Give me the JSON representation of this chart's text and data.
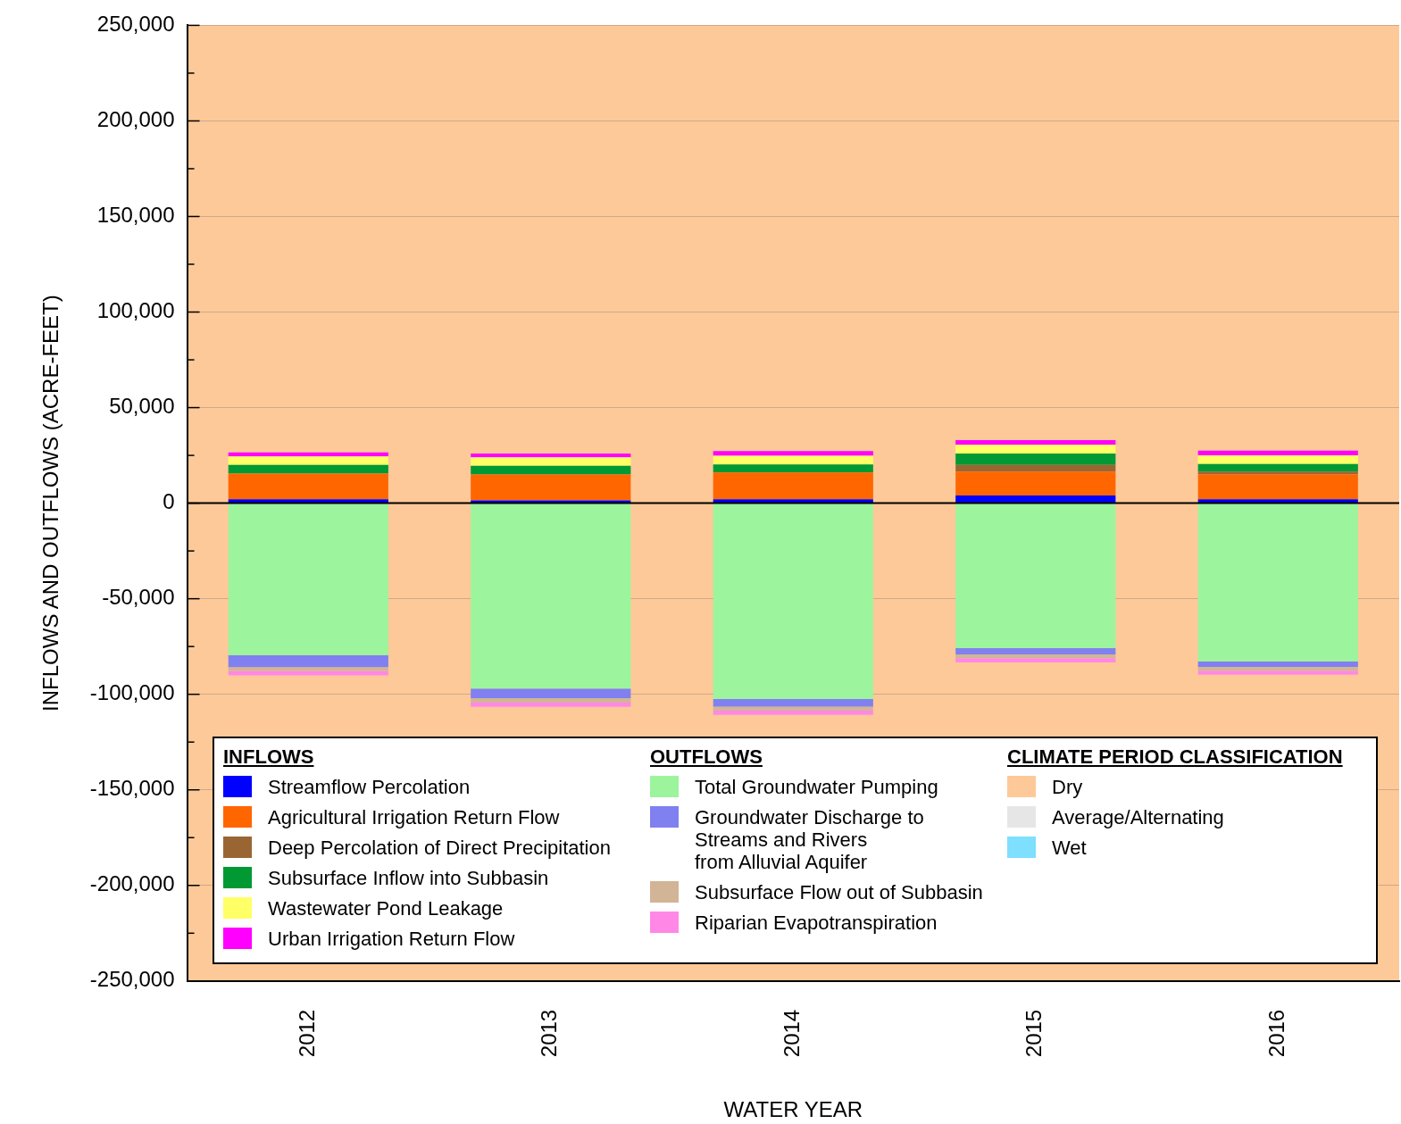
{
  "chart_data": {
    "type": "bar",
    "stacked": true,
    "xlabel": "WATER YEAR",
    "ylabel": "INFLOWS AND OUTFLOWS (ACRE-FEET)",
    "categories": [
      "2012",
      "2013",
      "2014",
      "2015",
      "2016"
    ],
    "series": [
      {
        "name": "Streamflow Percolation",
        "color": "#0000ff",
        "values": [
          2000,
          1500,
          2000,
          4000,
          2000
        ]
      },
      {
        "name": "Agricultural Irrigation Return Flow",
        "color": "#ff6600",
        "values": [
          13500,
          13500,
          14000,
          12500,
          13000
        ]
      },
      {
        "name": "Deep Percolation of Direct Precipitation",
        "color": "#996633",
        "values": [
          0,
          0,
          0,
          3500,
          1500
        ]
      },
      {
        "name": "Subsurface Inflow into Subbasin",
        "color": "#009933",
        "values": [
          4500,
          4500,
          4300,
          6000,
          4000
        ]
      },
      {
        "name": "Wastewater Pond Leakage",
        "color": "#ffff66",
        "values": [
          4500,
          4500,
          4500,
          4500,
          4500
        ]
      },
      {
        "name": "Urban Irrigation Return Flow",
        "color": "#ff00ff",
        "values": [
          2000,
          2000,
          2500,
          2500,
          2500
        ]
      },
      {
        "name": "Total Groundwater Pumping",
        "color": "#9cf59c",
        "values": [
          -79500,
          -97000,
          -102500,
          -75800,
          -82700
        ]
      },
      {
        "name": "Groundwater Discharge to\nStreams and Rivers\nfrom Alluvial Aquifer",
        "color": "#8080f0",
        "values": [
          -6300,
          -5000,
          -4000,
          -3300,
          -3000
        ]
      },
      {
        "name": "Subsurface Flow out of Subbasin",
        "color": "#d2b496",
        "values": [
          -2000,
          -2300,
          -2000,
          -2000,
          -2000
        ]
      },
      {
        "name": "Riparian Evapotranspiration",
        "color": "#ff88e6",
        "values": [
          -2300,
          -2300,
          -2300,
          -2200,
          -2000
        ]
      }
    ],
    "ylim": [
      -250000,
      250000
    ],
    "yticks": [
      {
        "value": -250000,
        "label": "-250,000"
      },
      {
        "value": -225000,
        "label": null
      },
      {
        "value": -200000,
        "label": "-200,000"
      },
      {
        "value": -175000,
        "label": null
      },
      {
        "value": -150000,
        "label": "-150,000"
      },
      {
        "value": -125000,
        "label": null
      },
      {
        "value": -100000,
        "label": "-100,000"
      },
      {
        "value": -75000,
        "label": null
      },
      {
        "value": -50000,
        "label": "-50,000"
      },
      {
        "value": -25000,
        "label": null
      },
      0,
      {
        "value": 25000,
        "label": null
      },
      {
        "value": 50000,
        "label": "50,000"
      },
      {
        "value": 75000,
        "label": null
      },
      {
        "value": 100000,
        "label": "100,000"
      },
      {
        "value": 125000,
        "label": null
      },
      {
        "value": 150000,
        "label": "150,000"
      },
      {
        "value": 175000,
        "label": null
      },
      {
        "value": 200000,
        "label": "200,000"
      },
      {
        "value": 225000,
        "label": null
      },
      {
        "value": 250000,
        "label": "250,000"
      }
    ],
    "grid": "y",
    "ref_lines": [
      {
        "axis": "y",
        "value": 0,
        "color": "#000000"
      }
    ],
    "bands": [
      {
        "axis": "x",
        "from": "2012",
        "to": "2016",
        "label": "Dry",
        "color": "#fdc998"
      }
    ],
    "annotations": [
      "INFLOWS",
      "OUTFLOWS",
      "CLIMATE PERIOD CLASSIFICATION",
      "Average/Alternating",
      "Wet"
    ],
    "legend": "bottom"
  }
}
